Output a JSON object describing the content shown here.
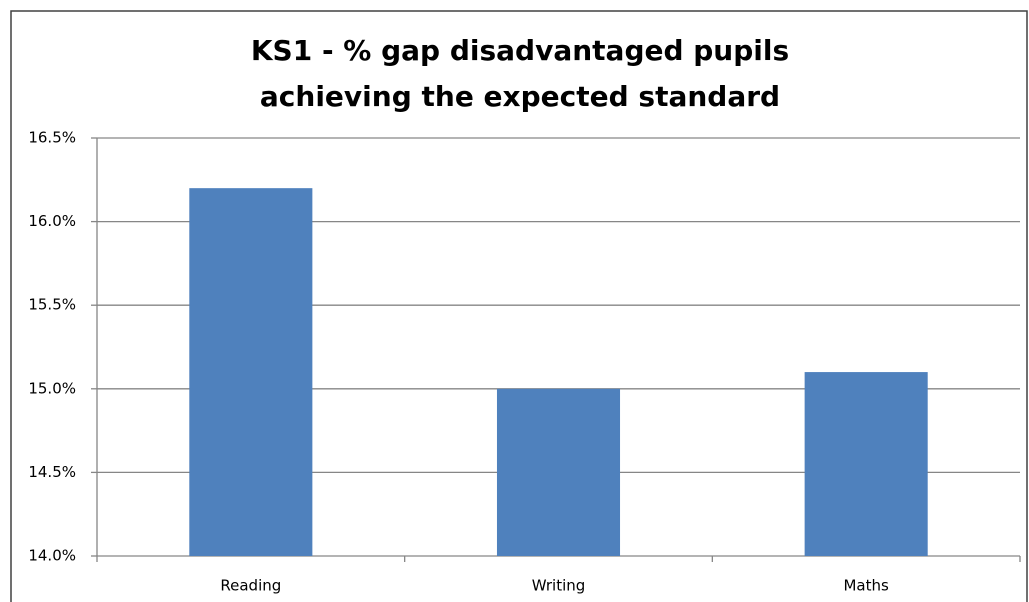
{
  "chart_data": {
    "type": "bar",
    "title": "KS1 - % gap disadvantaged pupils achieving the expected standard",
    "categories": [
      "Reading",
      "Writing",
      "Maths"
    ],
    "values": [
      16.2,
      15.0,
      15.1
    ],
    "color": "#4f81bd",
    "ylim": [
      14.0,
      16.5
    ],
    "yticks": [
      {
        "value": 14.0,
        "label": "14.0%"
      },
      {
        "value": 14.5,
        "label": "14.5%"
      },
      {
        "value": 15.0,
        "label": "15.0%"
      },
      {
        "value": 15.5,
        "label": "15.5%"
      },
      {
        "value": 16.0,
        "label": "16.0%"
      },
      {
        "value": 16.5,
        "label": "16.5%"
      }
    ],
    "grid": true
  }
}
